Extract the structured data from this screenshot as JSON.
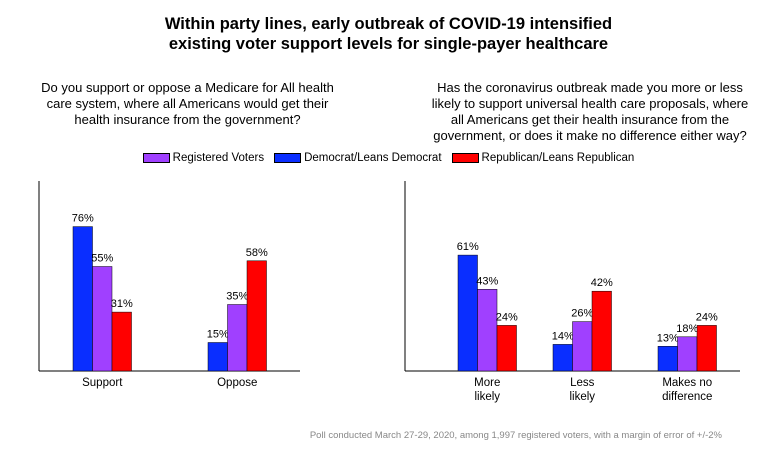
{
  "title_lines": [
    "Within party lines, early outbreak of COVID-19 intensified",
    "existing voter support levels for single-payer healthcare"
  ],
  "footnote": "Poll conducted March 27-29, 2020, among 1,997 registered voters, with a margin of error of +/-2%",
  "colors": {
    "registered": "#a040ff",
    "democrat": "#0a2eff",
    "republican": "#ff0000"
  },
  "legend": [
    {
      "name": "Registered Voters",
      "color": "#a040ff"
    },
    {
      "name": "Democrat/Leans Democrat",
      "color": "#0a2eff"
    },
    {
      "name": "Republican/Leans Republican",
      "color": "#ff0000"
    }
  ],
  "chart_data": [
    {
      "type": "bar",
      "question_lines": [
        "Do you support or oppose a Medicare for All health",
        "care system, where all Americans would get their",
        "health insurance from the government?"
      ],
      "categories": [
        [
          "Support"
        ],
        [
          "Oppose"
        ]
      ],
      "series": [
        {
          "name": "Democrat/Leans Democrat",
          "color": "#0a2eff",
          "values": [
            76,
            15
          ],
          "labels": [
            "76%",
            "15%"
          ]
        },
        {
          "name": "Registered Voters",
          "color": "#a040ff",
          "values": [
            55,
            35
          ],
          "labels": [
            "55%",
            "35%"
          ]
        },
        {
          "name": "Republican/Leans Republican",
          "color": "#ff0000",
          "values": [
            31,
            58
          ],
          "labels": [
            "31%",
            "58%"
          ]
        }
      ],
      "ylim": [
        0,
        100
      ],
      "grid": false
    },
    {
      "type": "bar",
      "question_lines": [
        "Has the coronavirus outbreak made you more or less",
        "likely to support universal health care proposals, where",
        "all Americans get their health insurance from the",
        "government, or does it make no difference either way?"
      ],
      "categories": [
        [
          "More",
          "likely"
        ],
        [
          "Less",
          "likely"
        ],
        [
          "Makes no",
          "difference"
        ]
      ],
      "series": [
        {
          "name": "Democrat/Leans Democrat",
          "color": "#0a2eff",
          "values": [
            61,
            14,
            13
          ],
          "labels": [
            "61%",
            "14%",
            "13%"
          ]
        },
        {
          "name": "Registered Voters",
          "color": "#a040ff",
          "values": [
            43,
            26,
            18
          ],
          "labels": [
            "43%",
            "26%",
            "18%"
          ]
        },
        {
          "name": "Republican/Leans Republican",
          "color": "#ff0000",
          "values": [
            24,
            42,
            24
          ],
          "labels": [
            "24%",
            "42%",
            "24%"
          ]
        }
      ],
      "ylim": [
        0,
        100
      ],
      "grid": false
    }
  ]
}
